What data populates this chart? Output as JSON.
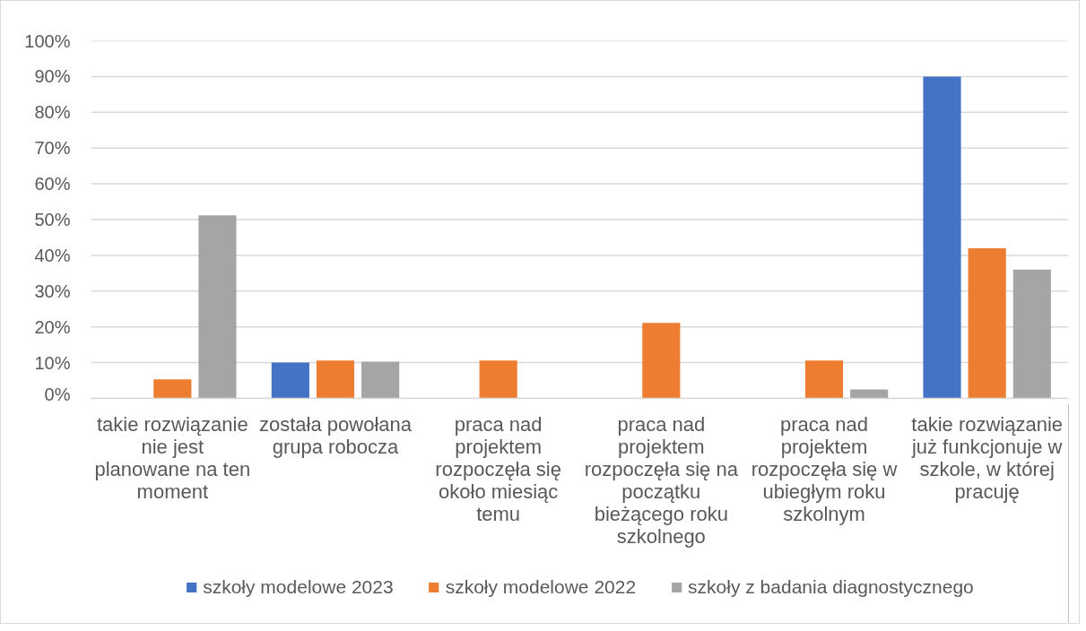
{
  "chart_data": {
    "type": "bar",
    "categories": [
      "takie rozwiązanie nie jest planowane na ten moment",
      "została powołana grupa robocza",
      "praca nad projektem rozpoczęła się około miesiąc temu",
      "praca nad projektem rozpoczęła się na początku bieżącego roku szkolnego",
      "praca nad projektem rozpoczęła się w ubiegłym roku szkolnym",
      "takie rozwiązanie już funkcjonuje w szkole, w której pracuję"
    ],
    "series": [
      {
        "name": "szkoły modelowe 2023",
        "color": "#4472c4",
        "values": [
          0,
          10,
          0,
          0,
          0,
          90
        ]
      },
      {
        "name": "szkoły modelowe 2022",
        "color": "#ed7d31",
        "values": [
          5.3,
          10.6,
          10.6,
          21.1,
          10.6,
          42
        ]
      },
      {
        "name": "szkoły z badania diagnostycznego",
        "color": "#a5a5a5",
        "values": [
          51.2,
          10.3,
          0,
          0,
          2.5,
          36
        ]
      }
    ],
    "ylim": [
      0,
      100
    ],
    "yticks": [
      {
        "value": 0,
        "label": "0%"
      },
      {
        "value": 10,
        "label": "10%"
      },
      {
        "value": 20,
        "label": "20%"
      },
      {
        "value": 30,
        "label": "30%"
      },
      {
        "value": 40,
        "label": "40%"
      },
      {
        "value": 50,
        "label": "50%"
      },
      {
        "value": 60,
        "label": "60%"
      },
      {
        "value": 70,
        "label": "70%"
      },
      {
        "value": 80,
        "label": "80%"
      },
      {
        "value": 90,
        "label": "90%"
      },
      {
        "value": 100,
        "label": "100%"
      }
    ],
    "grid": "y",
    "legend": "bottom"
  }
}
